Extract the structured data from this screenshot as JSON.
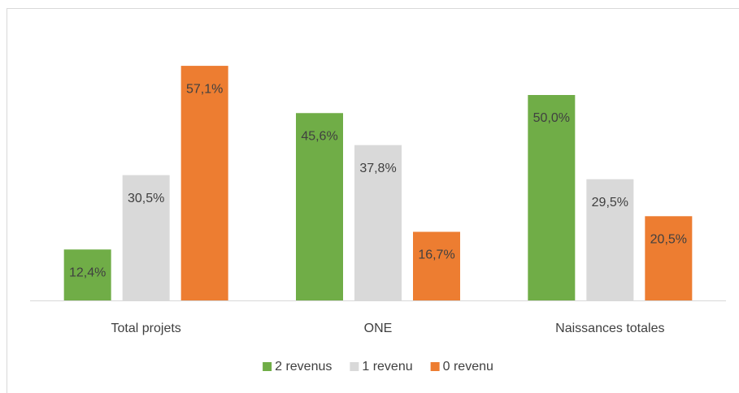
{
  "chart_data": {
    "type": "bar",
    "categories": [
      "Total projets",
      "ONE",
      "Naissances totales"
    ],
    "series": [
      {
        "name": "2 revenus",
        "color": "#70ad47",
        "values": [
          12.4,
          45.6,
          50.0
        ],
        "value_labels": [
          "12,4%",
          "45,6%",
          "50,0%"
        ]
      },
      {
        "name": "1 revenu",
        "color": "#d9d9d9",
        "values": [
          30.5,
          37.8,
          29.5
        ],
        "value_labels": [
          "30,5%",
          "37,8%",
          "29,5%"
        ]
      },
      {
        "name": "0 revenu",
        "color": "#ed7d31",
        "values": [
          57.1,
          16.7,
          20.5
        ],
        "value_labels": [
          "57,1%",
          "16,7%",
          "20,5%"
        ]
      }
    ],
    "legend": "bottom"
  }
}
